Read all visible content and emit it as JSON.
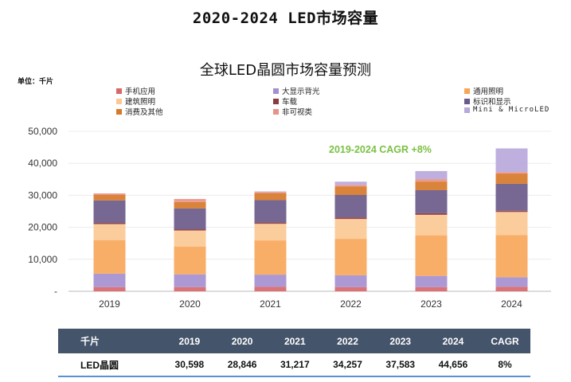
{
  "page_title": "2020-2024 LED市场容量",
  "chart_data": {
    "type": "bar",
    "stacked": true,
    "title": "全球LED晶圆市场容量预测",
    "unit_label": "单位：千片",
    "xlabel": "",
    "ylabel": "",
    "ylim": [
      0,
      50000
    ],
    "yticks": [
      0,
      10000,
      20000,
      30000,
      40000,
      50000
    ],
    "ytick_labels": [
      "-",
      "10,000",
      "20,000",
      "30,000",
      "40,000",
      "50,000"
    ],
    "grid": true,
    "legend_position": "top",
    "categories": [
      "2019",
      "2020",
      "2021",
      "2022",
      "2023",
      "2024"
    ],
    "series": [
      {
        "name": "手机应用",
        "color": "#d9676b",
        "values": [
          1300,
          1300,
          1400,
          1300,
          1300,
          1400
        ]
      },
      {
        "name": "大显示背光",
        "color": "#a58fcf",
        "values": [
          4200,
          4000,
          3800,
          3700,
          3500,
          3000
        ]
      },
      {
        "name": "通用照明",
        "color": "#f8a75a",
        "values": [
          10500,
          8700,
          10700,
          11400,
          12700,
          13200
        ]
      },
      {
        "name": "建筑照明",
        "color": "#fbc894",
        "values": [
          5000,
          5000,
          5200,
          6200,
          6400,
          7200
        ]
      },
      {
        "name": "车载",
        "color": "#8b3a3e",
        "values": [
          400,
          400,
          400,
          500,
          500,
          400
        ]
      },
      {
        "name": "标识和显示",
        "color": "#6a5a8a",
        "values": [
          7000,
          6500,
          7000,
          7000,
          7200,
          8400
        ]
      },
      {
        "name": "消费及其他",
        "color": "#d7782a",
        "values": [
          1700,
          2000,
          2200,
          2700,
          2700,
          3200
        ]
      },
      {
        "name": "非可视类",
        "color": "#e99288",
        "values": [
          498,
          946,
          317,
          457,
          783,
          456
        ]
      },
      {
        "name": "Mini & MicroLED",
        "color": "#b9a8dc",
        "values": [
          0,
          0,
          200,
          1000,
          2500,
          7400
        ]
      }
    ],
    "annotation": "2019-2024 CAGR +8%",
    "annotation_color": "#7ac043"
  },
  "table": {
    "headers": [
      "千片",
      "2019",
      "2020",
      "2021",
      "2022",
      "2023",
      "2024",
      "CAGR"
    ],
    "rows": [
      [
        "LED晶圆",
        "30,598",
        "28,846",
        "31,217",
        "34,257",
        "37,583",
        "44,656",
        "8%"
      ]
    ],
    "header_bg": "#44546a",
    "rule_color": "#5b8fd6"
  }
}
